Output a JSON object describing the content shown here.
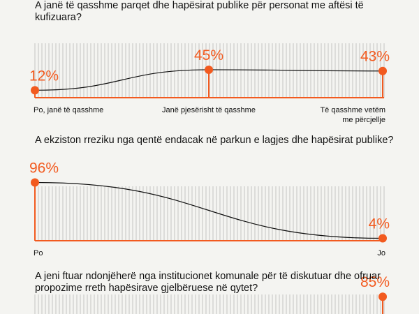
{
  "chart_data": [
    {
      "type": "line",
      "title": "A janë të qasshme parqet dhe hapësirat publike për personat me aftësi të kufizuara?",
      "categories": [
        "Po, janë të qasshme",
        "Janë pjesërisht të qasshme",
        "Të qasshme vetëm me përcjellje"
      ],
      "values": [
        12,
        45,
        43
      ],
      "value_labels": [
        "12%",
        "45%",
        "43%"
      ],
      "ylim": [
        0,
        100
      ],
      "color": "#f25a1f"
    },
    {
      "type": "line",
      "title": "A ekziston rreziku nga qentë endacak në parkun e lagjes dhe hapësirat publike?",
      "categories": [
        "Po",
        "Jo"
      ],
      "values": [
        96,
        4
      ],
      "value_labels": [
        "96%",
        "4%"
      ],
      "ylim": [
        0,
        100
      ],
      "color": "#f25a1f"
    },
    {
      "type": "line",
      "title": "A jeni ftuar ndonjëherë nga institucionet komunale për të diskutuar dhe ofruar propozime rreth hapësirave gjelbëruese në qytet?",
      "values": [
        85
      ],
      "value_labels": [
        "85%"
      ],
      "ylim": [
        0,
        100
      ],
      "color": "#f25a1f"
    }
  ]
}
